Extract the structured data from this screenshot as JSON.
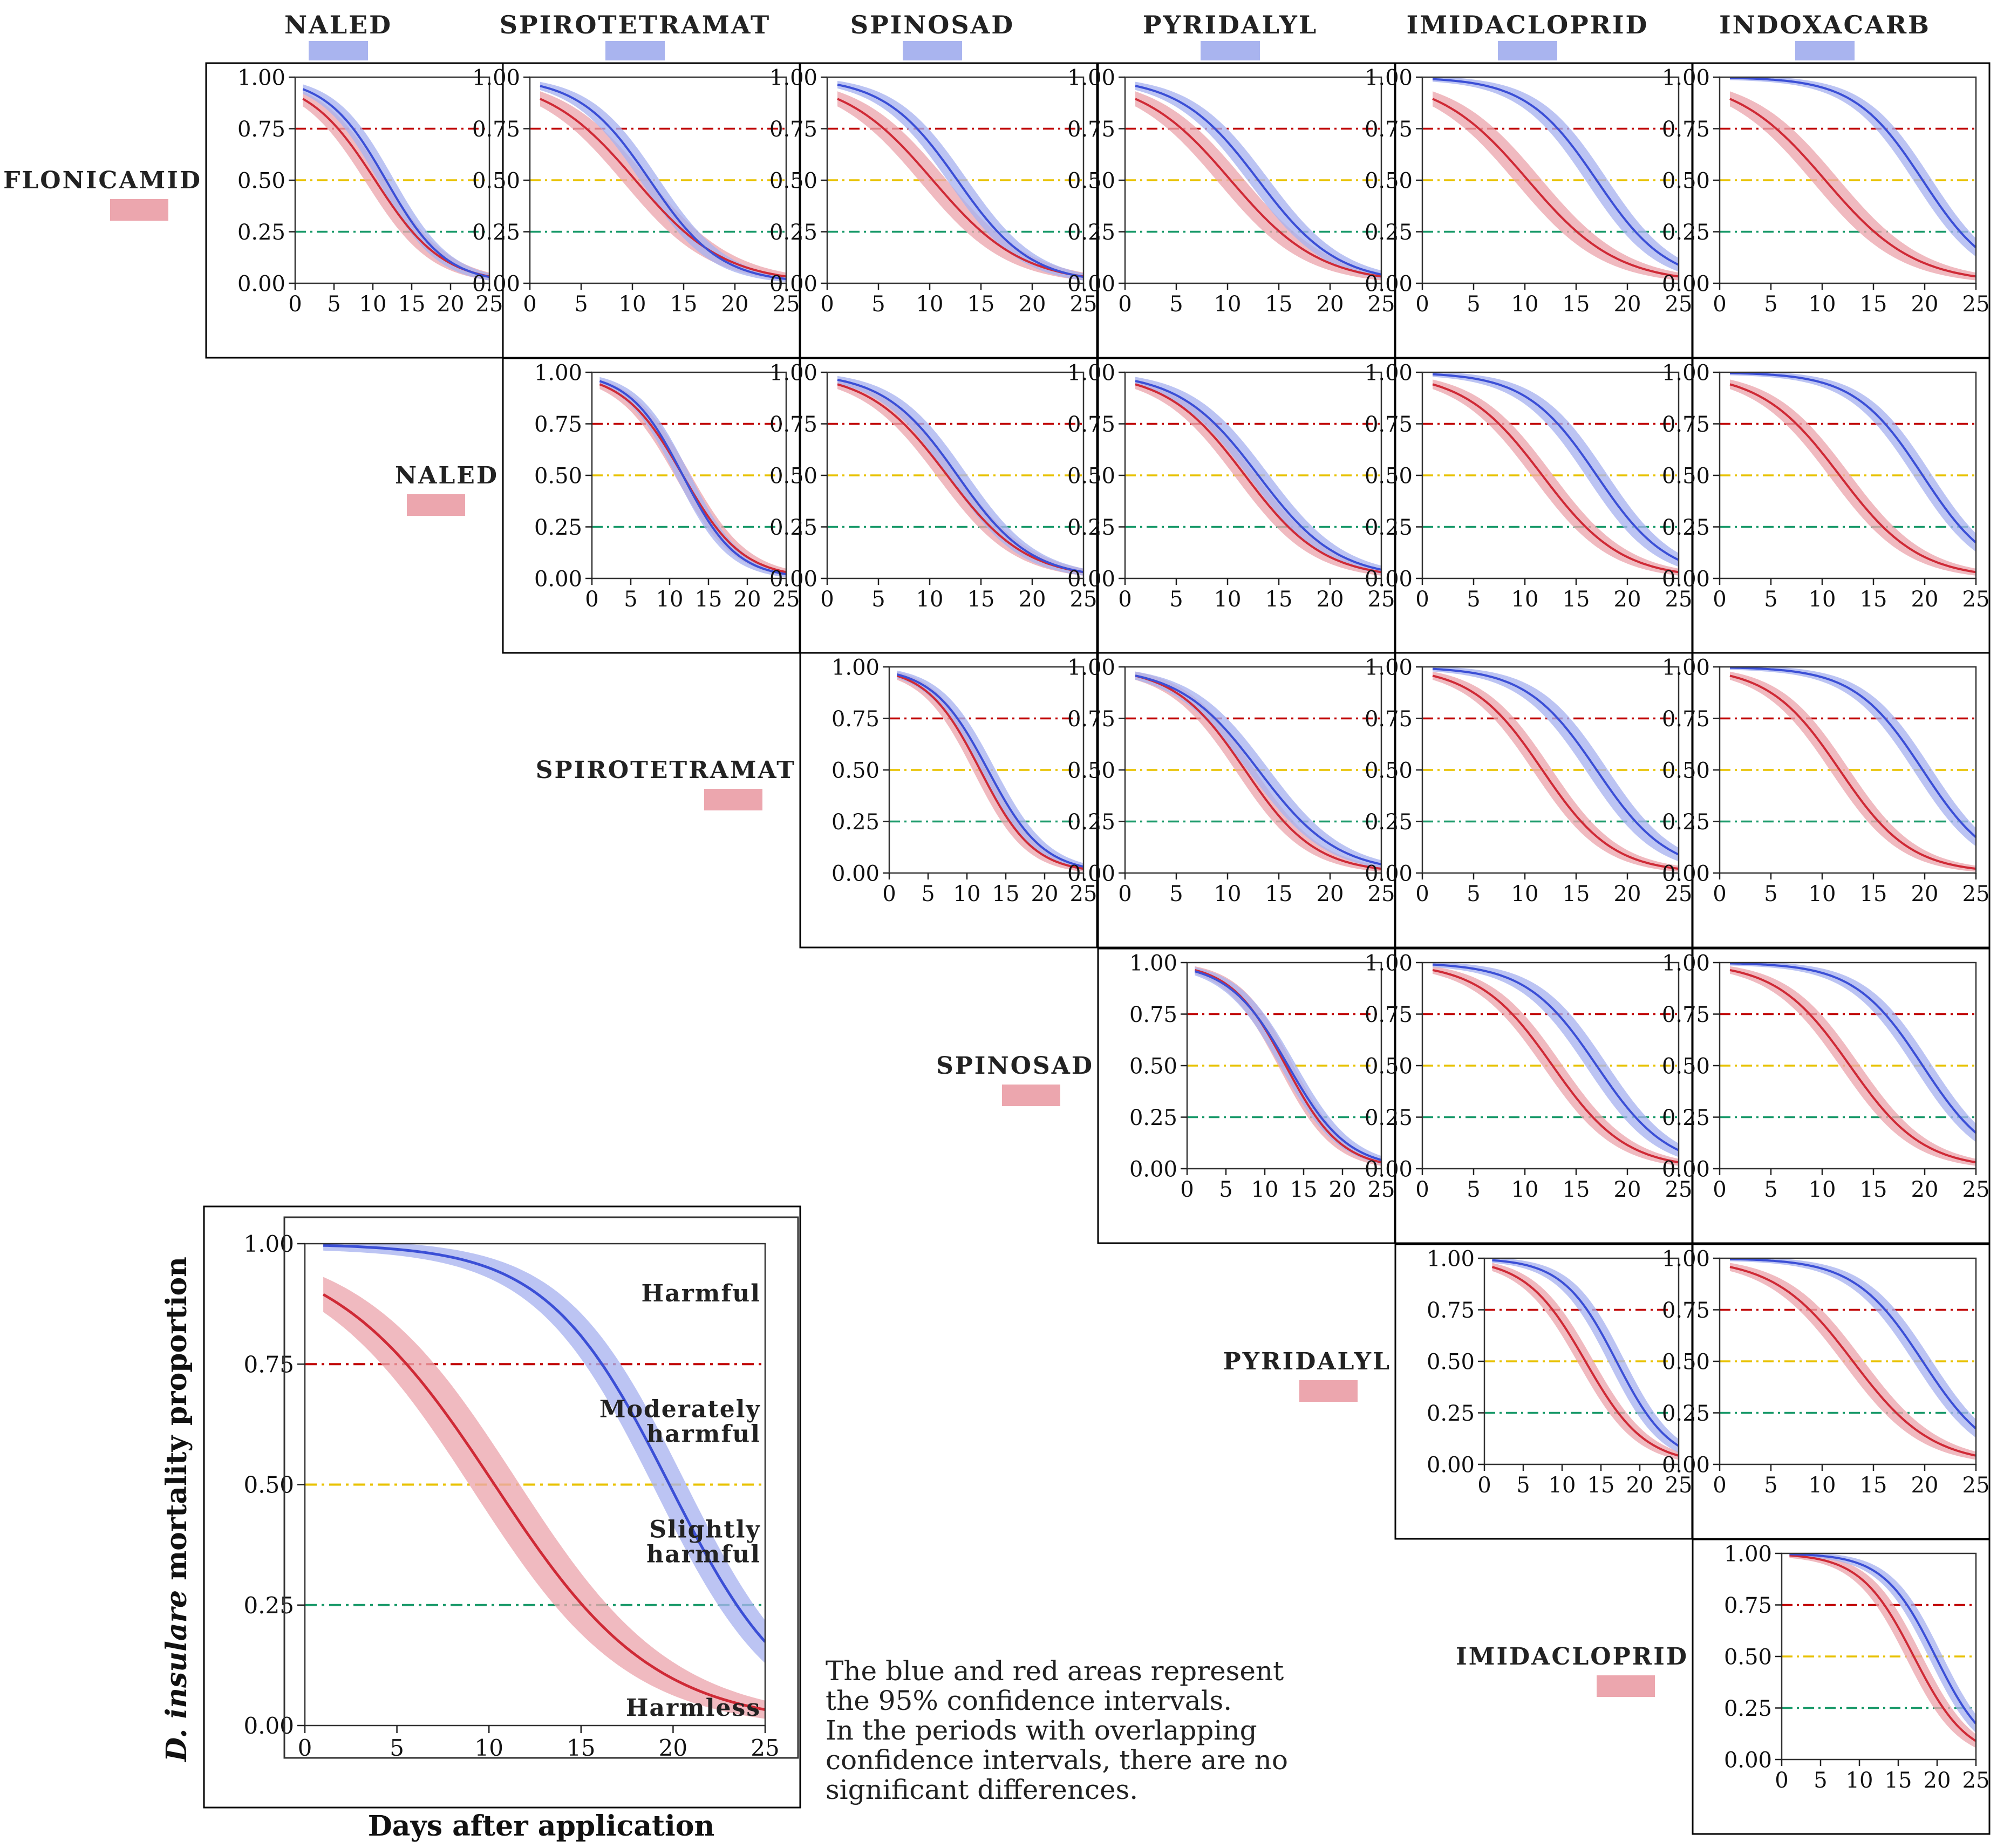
{
  "columns": [
    "NALED",
    "SPIROTETRAMAT",
    "SPINOSAD",
    "PYRIDALYL",
    "IMIDACLOPRID",
    "INDOXACARB"
  ],
  "rows": [
    "FLONICAMID",
    "NALED",
    "SPIROTETRAMAT",
    "SPINOSAD",
    "PYRIDALYL",
    "IMIDACLOPRID"
  ],
  "colors": {
    "blue_line": "#3b4fd6",
    "blue_band": "#a9b4ef",
    "red_line": "#cf2a36",
    "red_band": "#eca6ae",
    "threshold_075": "#c00000",
    "threshold_050": "#e8c200",
    "threshold_025": "#1a9a6a",
    "frame": "#000000"
  },
  "chart_data": {
    "type": "line",
    "description_type": "matrix of pairwise logistic mortality curves with 95% confidence bands",
    "xlabel": "Days after application",
    "ylabel_italic": "D. insulare",
    "ylabel_rest": " mortality proportion",
    "xlim": [
      0,
      25
    ],
    "ylim": [
      0,
      1
    ],
    "x_ticks": [
      "0",
      "5",
      "10",
      "15",
      "20",
      "25"
    ],
    "y_ticks": [
      "0.00",
      "0.25",
      "0.50",
      "0.75",
      "1.00"
    ],
    "thresholds": [
      0.75,
      0.5,
      0.25
    ],
    "x_range": [
      1,
      25
    ],
    "zones": [
      {
        "lines": [
          "Harmful"
        ],
        "y": 0.88
      },
      {
        "lines": [
          "Moderately",
          "harmful"
        ],
        "y": 0.64
      },
      {
        "lines": [
          "Slightly",
          "harmful"
        ],
        "y": 0.39
      },
      {
        "lines": [
          "Harmless"
        ],
        "y": 0.02
      }
    ],
    "note": [
      "The blue and red areas represent",
      "the 95% confidence intervals.",
      "In the periods with overlapping",
      "confidence intervals, there are no",
      "significant differences."
    ],
    "series": {
      "FLONICAMID": {
        "t50": 10.3,
        "k": 0.23,
        "ci": 0.07
      },
      "NALED": {
        "t50": 11.7,
        "k": 0.26,
        "ci": 0.06
      },
      "SPIROTETRAMAT": {
        "t50": 11.7,
        "k": 0.29,
        "ci": 0.06
      },
      "SPINOSAD": {
        "t50": 12.7,
        "k": 0.28,
        "ci": 0.06
      },
      "PYRIDALYL": {
        "t50": 13.0,
        "k": 0.26,
        "ci": 0.06
      },
      "IMIDACLOPRID": {
        "t50": 17.0,
        "k": 0.29,
        "ci": 0.07
      },
      "INDOXACARB": {
        "t50": 19.8,
        "k": 0.3,
        "ci": 0.06
      }
    },
    "pairs": [
      {
        "row": "FLONICAMID",
        "col": "NALED"
      },
      {
        "row": "FLONICAMID",
        "col": "SPIROTETRAMAT"
      },
      {
        "row": "FLONICAMID",
        "col": "SPINOSAD"
      },
      {
        "row": "FLONICAMID",
        "col": "PYRIDALYL"
      },
      {
        "row": "FLONICAMID",
        "col": "IMIDACLOPRID"
      },
      {
        "row": "FLONICAMID",
        "col": "INDOXACARB"
      },
      {
        "row": "NALED",
        "col": "SPIROTETRAMAT"
      },
      {
        "row": "NALED",
        "col": "SPINOSAD"
      },
      {
        "row": "NALED",
        "col": "PYRIDALYL"
      },
      {
        "row": "NALED",
        "col": "IMIDACLOPRID"
      },
      {
        "row": "NALED",
        "col": "INDOXACARB"
      },
      {
        "row": "SPIROTETRAMAT",
        "col": "SPINOSAD"
      },
      {
        "row": "SPIROTETRAMAT",
        "col": "PYRIDALYL"
      },
      {
        "row": "SPIROTETRAMAT",
        "col": "IMIDACLOPRID"
      },
      {
        "row": "SPIROTETRAMAT",
        "col": "INDOXACARB"
      },
      {
        "row": "SPINOSAD",
        "col": "PYRIDALYL"
      },
      {
        "row": "SPINOSAD",
        "col": "IMIDACLOPRID"
      },
      {
        "row": "SPINOSAD",
        "col": "INDOXACARB"
      },
      {
        "row": "PYRIDALYL",
        "col": "IMIDACLOPRID"
      },
      {
        "row": "PYRIDALYL",
        "col": "INDOXACARB"
      },
      {
        "row": "IMIDACLOPRID",
        "col": "INDOXACARB"
      }
    ],
    "legend_example": {
      "red": "FLONICAMID",
      "blue": "INDOXACARB"
    }
  }
}
